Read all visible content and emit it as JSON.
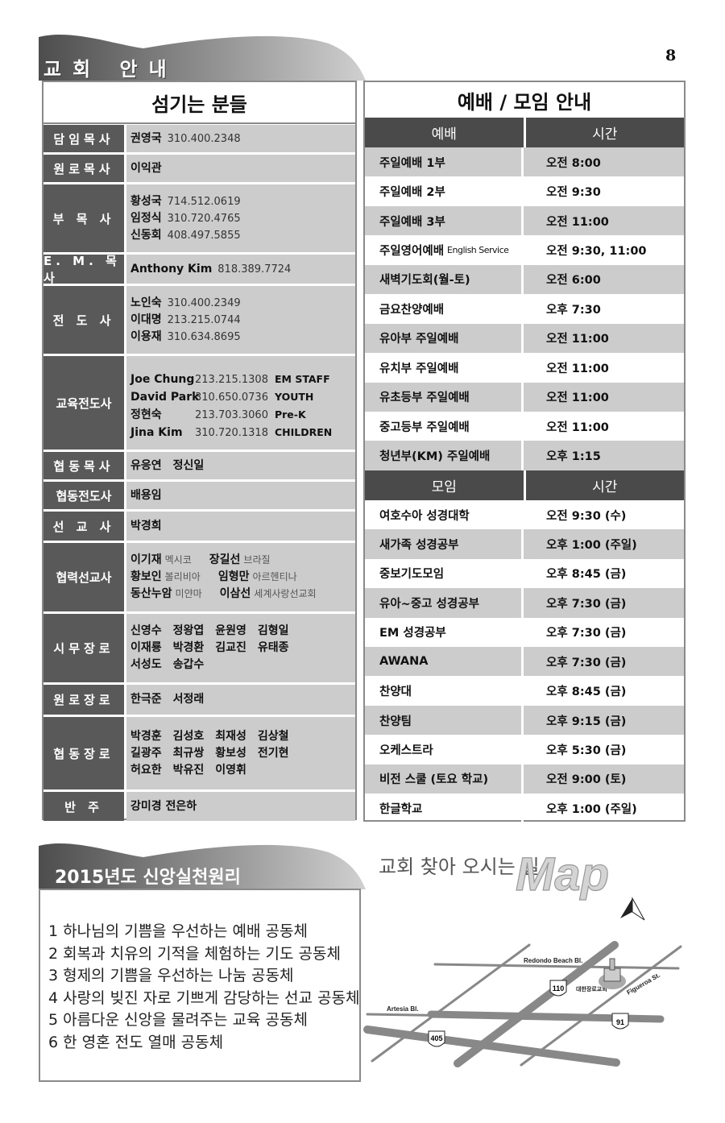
{
  "page_number": "8",
  "section_title": "교회 안내",
  "staff": {
    "title": "섬기는 분들",
    "rows": [
      {
        "label": "담임목사",
        "lines": [
          [
            {
              "name": "권영국",
              "phone": "310.400.2348"
            }
          ]
        ]
      },
      {
        "label": "원로목사",
        "lines": [
          [
            {
              "name": "이익관"
            }
          ]
        ]
      },
      {
        "label": "부 목 사",
        "lines": [
          [
            {
              "name": "황성국",
              "phone": "714.512.0619"
            }
          ],
          [
            {
              "name": "임정식",
              "phone": "310.720.4765"
            }
          ],
          [
            {
              "name": "신동회",
              "phone": "408.497.5855"
            }
          ]
        ]
      },
      {
        "label": "E. M. 목사",
        "lines": [
          [
            {
              "name": "Anthony Kim",
              "phone": "818.389.7724"
            }
          ]
        ]
      },
      {
        "label": "전 도 사",
        "lines": [
          [
            {
              "name": "노인숙",
              "phone": "310.400.2349"
            }
          ],
          [
            {
              "name": "이대명",
              "phone": "213.215.0744"
            }
          ],
          [
            {
              "name": "이용재",
              "phone": "310.634.8695"
            }
          ]
        ]
      },
      {
        "label": "교육전도사",
        "lines": [
          [
            {
              "name": "Joe Chung",
              "phone": "213.215.1308",
              "role": "EM STAFF"
            }
          ],
          [
            {
              "name": "David Park",
              "phone": "310.650.0736",
              "role": "YOUTH"
            }
          ],
          [
            {
              "name": "정현숙",
              "phone": "213.703.3060",
              "role": "Pre-K"
            }
          ],
          [
            {
              "name": "Jina Kim",
              "phone": "310.720.1318",
              "role": "CHILDREN"
            }
          ]
        ]
      },
      {
        "label": "협동목사",
        "lines": [
          [
            {
              "elder": "유응연"
            },
            {
              "elder": "정신일"
            }
          ]
        ]
      },
      {
        "label": "협동전도사",
        "lines": [
          [
            {
              "name": "배용임"
            }
          ]
        ]
      },
      {
        "label": "선 교 사",
        "lines": [
          [
            {
              "name": "박경희"
            }
          ]
        ]
      },
      {
        "label": "협력선교사",
        "lines": [
          [
            {
              "name": "이기재",
              "country": "멕시코"
            },
            {
              "name": "장길선",
              "country": "브라질"
            }
          ],
          [
            {
              "name": "황보인",
              "country": "볼리비아"
            },
            {
              "name": "임형만",
              "country": "아르헨티나"
            }
          ],
          [
            {
              "name": "동산누암",
              "country": "미얀마"
            },
            {
              "name": "이삼선",
              "country": "세계사랑선교회"
            }
          ]
        ]
      },
      {
        "label": "시무장로",
        "lines": [
          [
            {
              "elder": "신영수"
            },
            {
              "elder": "정왕엽"
            },
            {
              "elder": "윤원영"
            },
            {
              "elder": "김형일"
            }
          ],
          [
            {
              "elder": "이재룡"
            },
            {
              "elder": "박경환"
            },
            {
              "elder": "김교진"
            },
            {
              "elder": "유태종"
            }
          ],
          [
            {
              "elder": "서성도"
            },
            {
              "elder": "송갑수"
            }
          ]
        ]
      },
      {
        "label": "원로장로",
        "lines": [
          [
            {
              "elder": "한극준"
            },
            {
              "elder": "서정래"
            }
          ]
        ]
      },
      {
        "label": "협동장로",
        "lines": [
          [
            {
              "elder": "박경훈"
            },
            {
              "elder": "김성호"
            },
            {
              "elder": "최재성"
            },
            {
              "elder": "김상철"
            }
          ],
          [
            {
              "elder": "길광주"
            },
            {
              "elder": "최규쌍"
            },
            {
              "elder": "황보성"
            },
            {
              "elder": "전기현"
            }
          ],
          [
            {
              "elder": "허요한"
            },
            {
              "elder": "박유진"
            },
            {
              "elder": "이영휘"
            }
          ]
        ]
      },
      {
        "label": "반      주",
        "lines": [
          [
            {
              "name": "강미경 전은하"
            }
          ]
        ]
      }
    ]
  },
  "schedule": {
    "title": "예배 / 모임 안내",
    "worship_header": [
      "예배",
      "시간"
    ],
    "worship": [
      {
        "name": "주일예배 1부",
        "time": "오전 8:00"
      },
      {
        "name": "주일예배 2부",
        "time": "오전 9:30"
      },
      {
        "name": "주일예배 3부",
        "time": "오전 11:00"
      },
      {
        "name": "주일영어예배",
        "note": "English Service",
        "time": "오전 9:30, 11:00"
      },
      {
        "name": "새벽기도회(월-토)",
        "time": "오전 6:00"
      },
      {
        "name": "금요찬양예배",
        "time": "오후 7:30"
      },
      {
        "name": "유아부 주일예배",
        "time": "오전 11:00"
      },
      {
        "name": "유치부 주일예배",
        "time": "오전 11:00"
      },
      {
        "name": "유초등부 주일예배",
        "time": "오전 11:00"
      },
      {
        "name": "중고등부 주일예배",
        "time": "오전 11:00"
      },
      {
        "name": "청년부(KM) 주일예배",
        "time": "오후 1:15"
      }
    ],
    "meeting_header": [
      "모임",
      "시간"
    ],
    "meetings": [
      {
        "name": "여호수아 성경대학",
        "time": "오전 9:30 (수)"
      },
      {
        "name": "새가족 성경공부",
        "time": "오후 1:00 (주일)"
      },
      {
        "name": "중보기도모임",
        "time": "오후 8:45 (금)"
      },
      {
        "name": "유아~중고 성경공부",
        "time": "오후 7:30 (금)"
      },
      {
        "name": "EM 성경공부",
        "time": "오후 7:30 (금)"
      },
      {
        "name": "AWANA",
        "time": "오후 7:30 (금)"
      },
      {
        "name": "찬양대",
        "time": "오후 8:45 (금)"
      },
      {
        "name": "찬양팀",
        "time": "오후 9:15 (금)"
      },
      {
        "name": "오케스트라",
        "time": "오후 5:30 (금)"
      },
      {
        "name": "비전 스쿨 (토요 학교)",
        "time": "오전 9:00 (토)"
      },
      {
        "name": "한글학교",
        "time": "오후 1:00 (주일)"
      }
    ]
  },
  "principles": {
    "title": "2015년도 신앙실천원리",
    "items": [
      "1  하나님의 기쁨을 우선하는 예배 공동체",
      "2  회복과 치유의 기적을 체험하는 기도 공동체",
      "3  형제의 기쁨을 우선하는 나눔 공동체",
      "4  사랑의 빚진 자로 기쁘게 감당하는 선교 공동체",
      "5  아름다운 신앙을 물려주는 교육 공동체",
      "6  한 영혼 전도 열매 공동체"
    ]
  },
  "map": {
    "title": "교회 찾아 오시는 길",
    "logo_text": "Map",
    "streets": [
      "Redondo Beach Bl.",
      "Artesia Bl.",
      "Figueroa St."
    ],
    "freeways": [
      "110",
      "91",
      "405"
    ],
    "church_label": "대한장로교회"
  },
  "colors": {
    "header_dark": "#595959",
    "cell_gray": "#cccccc",
    "table_header": "#4a4a4a"
  }
}
